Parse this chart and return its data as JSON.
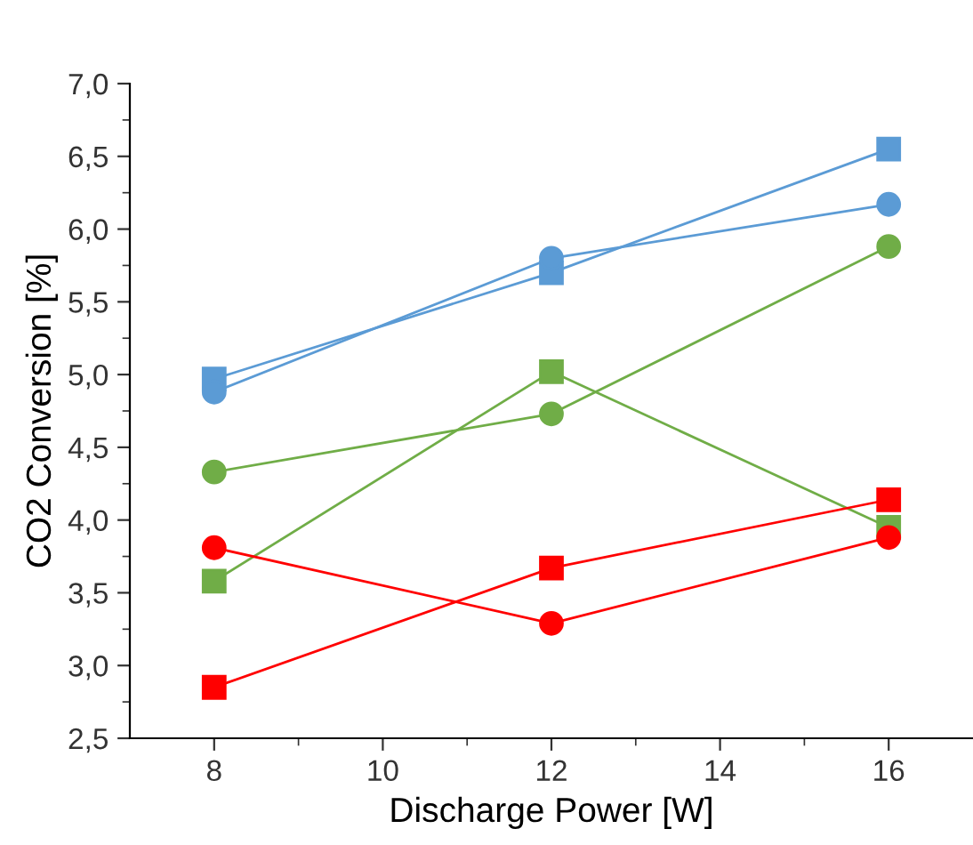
{
  "chart_data": {
    "type": "line",
    "xlabel": "Discharge Power [W]",
    "ylabel": "CO2 Conversion [%]",
    "x": [
      8,
      12,
      16
    ],
    "series": [
      {
        "color": "#5b9bd5",
        "marker": "square",
        "values": [
          4.97,
          5.7,
          6.55
        ]
      },
      {
        "color": "#5b9bd5",
        "marker": "circle",
        "values": [
          4.88,
          5.8,
          6.17
        ]
      },
      {
        "color": "#70ad47",
        "marker": "circle",
        "values": [
          4.33,
          4.73,
          5.88
        ]
      },
      {
        "color": "#70ad47",
        "marker": "square",
        "values": [
          3.58,
          5.02,
          3.95
        ]
      },
      {
        "color": "#ff0000",
        "marker": "circle",
        "values": [
          3.81,
          3.29,
          3.88
        ]
      },
      {
        "color": "#ff0000",
        "marker": "square",
        "values": [
          2.85,
          3.67,
          4.14
        ]
      }
    ],
    "xlim": [
      7,
      17
    ],
    "xticks": [
      8,
      10,
      12,
      14,
      16
    ],
    "ylim": [
      2.5,
      7.0
    ],
    "yticks": [
      {
        "value": 2.5,
        "label": "2,5"
      },
      {
        "value": 3.0,
        "label": "3,0"
      },
      {
        "value": 3.5,
        "label": "3,5"
      },
      {
        "value": 4.0,
        "label": "4,0"
      },
      {
        "value": 4.5,
        "label": "4,5"
      },
      {
        "value": 5.0,
        "label": "5,0"
      },
      {
        "value": 5.5,
        "label": "5,5"
      },
      {
        "value": 6.0,
        "label": "6,0"
      },
      {
        "value": 6.5,
        "label": "6,5"
      },
      {
        "value": 7.0,
        "label": "7,0"
      }
    ],
    "grid": false,
    "line_style": "solid"
  }
}
